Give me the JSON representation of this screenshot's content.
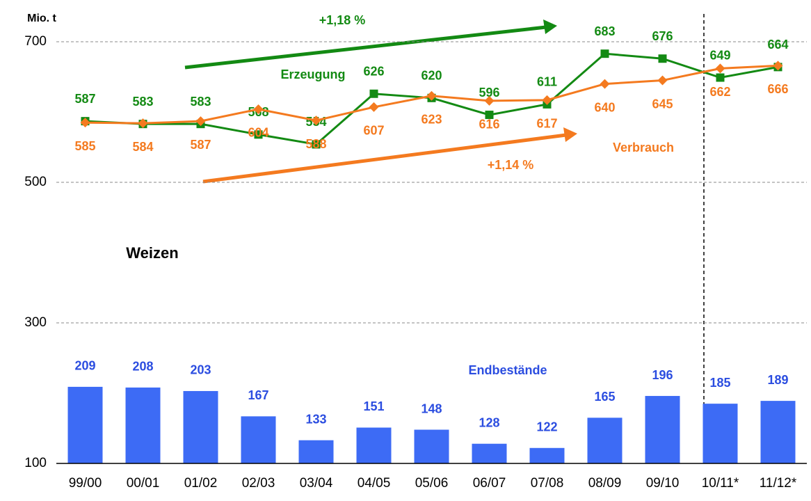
{
  "chart_data": {
    "type": "combo",
    "ylabel": "Mio. t",
    "annotations": [
      "+1,18 %",
      "+1,14 %",
      "Weizen"
    ],
    "categories": [
      "99/00",
      "00/01",
      "01/02",
      "02/03",
      "03/04",
      "04/05",
      "05/06",
      "06/07",
      "07/08",
      "08/09",
      "09/10",
      "10/11*",
      "11/12*"
    ],
    "series": [
      {
        "name": "Erzeugung",
        "type": "line",
        "marker": "square",
        "color": "#138a13",
        "values": [
          587,
          583,
          583,
          568,
          554,
          626,
          620,
          596,
          611,
          683,
          676,
          649,
          664
        ]
      },
      {
        "name": "Verbrauch",
        "type": "line",
        "marker": "diamond",
        "color": "#f47a1f",
        "values": [
          585,
          584,
          587,
          604,
          588,
          607,
          623,
          616,
          617,
          640,
          645,
          662,
          666
        ]
      },
      {
        "name": "Endbestände",
        "type": "bar",
        "color": "#3d6bf5",
        "values": [
          209,
          208,
          203,
          167,
          133,
          151,
          148,
          128,
          122,
          165,
          196,
          185,
          189
        ]
      }
    ],
    "ylim": [
      100,
      700
    ],
    "yticks": [
      100,
      300,
      500,
      700
    ],
    "grid": true
  }
}
